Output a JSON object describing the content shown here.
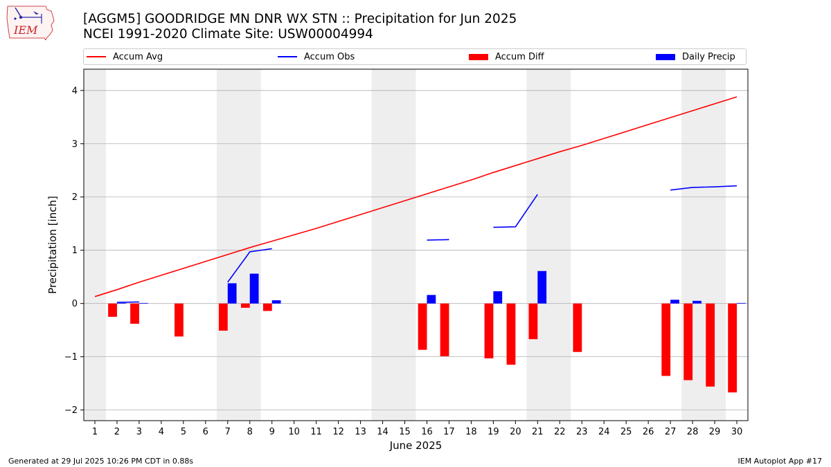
{
  "header": {
    "title_line1": "[AGGM5] GOODRIDGE MN DNR WX STN :: Precipitation for Jun 2025",
    "title_line2": "NCEI 1991-2020 Climate Site: USW00004994",
    "logo_text": "IEM"
  },
  "legend": {
    "placement": "top, above plot",
    "items": [
      {
        "label": "Accum Avg",
        "color": "#ff0000",
        "kind": "line"
      },
      {
        "label": "Accum Obs",
        "color": "#0000ff",
        "kind": "line"
      },
      {
        "label": "Accum Diff",
        "color": "#ff0000",
        "kind": "patch"
      },
      {
        "label": "Daily Precip",
        "color": "#0000ff",
        "kind": "patch"
      }
    ]
  },
  "chart_data": {
    "type": "bar",
    "xlabel": "June 2025",
    "ylabel": "Precipitation [inch]",
    "xlim": [
      0.5,
      30.5
    ],
    "ylim": [
      -2.2,
      4.4
    ],
    "yticks": [
      -2,
      -1,
      0,
      1,
      2,
      3,
      4
    ],
    "xticks": [
      1,
      2,
      3,
      4,
      5,
      6,
      7,
      8,
      9,
      10,
      11,
      12,
      13,
      14,
      15,
      16,
      17,
      18,
      19,
      20,
      21,
      22,
      23,
      24,
      25,
      26,
      27,
      28,
      29,
      30
    ],
    "grid": "horizontal",
    "weekend_shading": [
      [
        0.5,
        1.5
      ],
      [
        6.5,
        8.5
      ],
      [
        13.5,
        15.5
      ],
      [
        20.5,
        22.5
      ],
      [
        27.5,
        29.5
      ]
    ],
    "days": [
      1,
      2,
      3,
      4,
      5,
      6,
      7,
      8,
      9,
      10,
      11,
      12,
      13,
      14,
      15,
      16,
      17,
      18,
      19,
      20,
      21,
      22,
      23,
      24,
      25,
      26,
      27,
      28,
      29,
      30
    ],
    "series": [
      {
        "name": "Accum Avg",
        "color": "#ff0000",
        "kind": "line",
        "values": [
          0.13,
          0.26,
          0.4,
          0.53,
          0.66,
          0.79,
          0.92,
          1.05,
          1.17,
          1.29,
          1.41,
          1.54,
          1.67,
          1.8,
          1.93,
          2.06,
          2.19,
          2.32,
          2.46,
          2.59,
          2.72,
          2.85,
          2.97,
          3.1,
          3.23,
          3.36,
          3.49,
          3.62,
          3.75,
          3.88
        ]
      },
      {
        "name": "Accum Obs",
        "color": "#0000ff",
        "kind": "line",
        "values": [
          null,
          0.02,
          0.03,
          null,
          null,
          null,
          0.4,
          0.97,
          1.03,
          null,
          null,
          null,
          null,
          null,
          null,
          1.19,
          1.2,
          null,
          1.43,
          1.44,
          2.05,
          null,
          null,
          null,
          null,
          null,
          2.13,
          2.18,
          2.19,
          2.21
        ]
      },
      {
        "name": "Accum Diff",
        "color": "#ff0000",
        "kind": "bar",
        "values": [
          null,
          -0.25,
          -0.38,
          null,
          -0.62,
          null,
          -0.51,
          -0.08,
          -0.14,
          null,
          null,
          null,
          null,
          null,
          null,
          -0.87,
          -0.99,
          null,
          -1.03,
          -1.15,
          -0.67,
          null,
          -0.91,
          null,
          null,
          null,
          -1.36,
          -1.44,
          -1.56,
          -1.67
        ]
      },
      {
        "name": "Daily Precip",
        "color": "#0000ff",
        "kind": "bar",
        "values": [
          null,
          0.01,
          0.01,
          null,
          null,
          null,
          0.38,
          0.56,
          0.06,
          null,
          null,
          null,
          null,
          null,
          null,
          0.16,
          null,
          null,
          0.23,
          null,
          0.61,
          null,
          null,
          null,
          null,
          null,
          0.07,
          0.05,
          null,
          0.01
        ]
      }
    ]
  },
  "footer": {
    "left": "Generated at 29 Jul 2025 10:26 PM CDT in 0.88s",
    "right": "IEM Autoplot App #17"
  }
}
